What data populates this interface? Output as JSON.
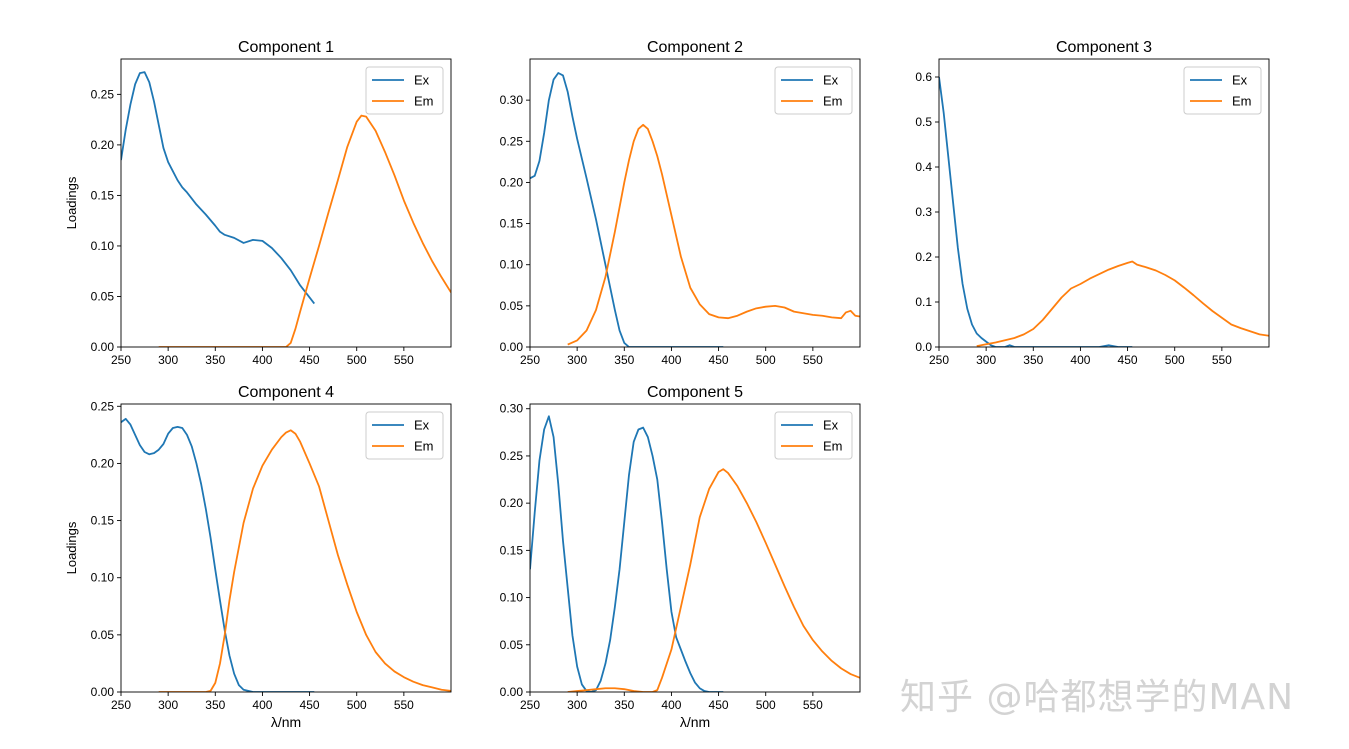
{
  "watermark": "知乎 @哈都想学的MAN",
  "colors": {
    "ex": "#1f77b4",
    "em": "#ff7f0e"
  },
  "chart_data": [
    {
      "type": "line",
      "title": "Component 1",
      "xlabel": "",
      "ylabel": "Loadings",
      "xlim": [
        250,
        600
      ],
      "ylim": [
        0,
        0.285
      ],
      "xticks": [
        250,
        300,
        350,
        400,
        450,
        500,
        550
      ],
      "yticks": [
        0.0,
        0.05,
        0.1,
        0.15,
        0.2,
        0.25
      ],
      "xtick_labels": [
        "250",
        "300",
        "350",
        "400",
        "450",
        "500",
        "550"
      ],
      "ytick_labels": [
        "0.00",
        "0.05",
        "0.10",
        "0.15",
        "0.20",
        "0.25"
      ],
      "legend": [
        "Ex",
        "Em"
      ],
      "series": [
        {
          "name": "Ex",
          "x": [
            250,
            255,
            260,
            265,
            270,
            275,
            280,
            285,
            290,
            295,
            300,
            305,
            310,
            315,
            320,
            330,
            340,
            350,
            355,
            360,
            370,
            380,
            390,
            400,
            410,
            420,
            430,
            440,
            450,
            455
          ],
          "y": [
            0.185,
            0.215,
            0.24,
            0.26,
            0.271,
            0.272,
            0.262,
            0.243,
            0.22,
            0.197,
            0.183,
            0.174,
            0.165,
            0.158,
            0.153,
            0.141,
            0.131,
            0.12,
            0.114,
            0.111,
            0.108,
            0.103,
            0.106,
            0.105,
            0.098,
            0.088,
            0.076,
            0.061,
            0.049,
            0.043
          ]
        },
        {
          "name": "Em",
          "x": [
            290,
            300,
            350,
            400,
            420,
            425,
            430,
            435,
            440,
            450,
            460,
            470,
            480,
            490,
            500,
            505,
            510,
            520,
            530,
            540,
            550,
            560,
            570,
            580,
            590,
            600
          ],
          "y": [
            0,
            0,
            0,
            0,
            0,
            0,
            0.004,
            0.018,
            0.035,
            0.068,
            0.1,
            0.133,
            0.165,
            0.198,
            0.223,
            0.229,
            0.228,
            0.214,
            0.193,
            0.17,
            0.145,
            0.123,
            0.103,
            0.085,
            0.069,
            0.054
          ]
        }
      ]
    },
    {
      "type": "line",
      "title": "Component 2",
      "xlabel": "",
      "ylabel": "",
      "xlim": [
        250,
        600
      ],
      "ylim": [
        0,
        0.35
      ],
      "xticks": [
        250,
        300,
        350,
        400,
        450,
        500,
        550
      ],
      "yticks": [
        0.0,
        0.05,
        0.1,
        0.15,
        0.2,
        0.25,
        0.3
      ],
      "xtick_labels": [
        "250",
        "300",
        "350",
        "400",
        "450",
        "500",
        "550"
      ],
      "ytick_labels": [
        "0.00",
        "0.05",
        "0.10",
        "0.15",
        "0.20",
        "0.25",
        "0.30"
      ],
      "legend": [
        "Ex",
        "Em"
      ],
      "series": [
        {
          "name": "Ex",
          "x": [
            250,
            255,
            260,
            265,
            270,
            275,
            280,
            285,
            290,
            295,
            300,
            310,
            320,
            330,
            340,
            345,
            350,
            355,
            360,
            380,
            400,
            420,
            440,
            455
          ],
          "y": [
            0.205,
            0.208,
            0.226,
            0.26,
            0.3,
            0.325,
            0.333,
            0.33,
            0.31,
            0.28,
            0.253,
            0.205,
            0.155,
            0.1,
            0.045,
            0.02,
            0.005,
            0,
            0,
            0,
            0,
            0,
            0,
            0
          ]
        },
        {
          "name": "Em",
          "x": [
            290,
            300,
            310,
            320,
            330,
            340,
            350,
            355,
            360,
            365,
            370,
            375,
            380,
            385,
            390,
            400,
            410,
            420,
            430,
            440,
            450,
            460,
            470,
            480,
            490,
            500,
            510,
            520,
            530,
            540,
            550,
            560,
            570,
            580,
            585,
            590,
            595,
            600
          ],
          "y": [
            0.003,
            0.008,
            0.02,
            0.045,
            0.085,
            0.14,
            0.2,
            0.227,
            0.25,
            0.265,
            0.27,
            0.265,
            0.25,
            0.232,
            0.21,
            0.16,
            0.11,
            0.072,
            0.052,
            0.04,
            0.036,
            0.035,
            0.038,
            0.043,
            0.047,
            0.049,
            0.05,
            0.048,
            0.043,
            0.041,
            0.039,
            0.038,
            0.036,
            0.035,
            0.042,
            0.044,
            0.038,
            0.037
          ]
        }
      ]
    },
    {
      "type": "line",
      "title": "Component 3",
      "xlabel": "",
      "ylabel": "",
      "xlim": [
        250,
        600
      ],
      "ylim": [
        0,
        0.64
      ],
      "xticks": [
        250,
        300,
        350,
        400,
        450,
        500,
        550
      ],
      "yticks": [
        0.0,
        0.1,
        0.2,
        0.3,
        0.4,
        0.5,
        0.6
      ],
      "xtick_labels": [
        "250",
        "300",
        "350",
        "400",
        "450",
        "500",
        "550"
      ],
      "ytick_labels": [
        "0.0",
        "0.1",
        "0.2",
        "0.3",
        "0.4",
        "0.5",
        "0.6"
      ],
      "legend": [
        "Ex",
        "Em"
      ],
      "series": [
        {
          "name": "Ex",
          "x": [
            250,
            255,
            260,
            265,
            270,
            275,
            280,
            285,
            290,
            295,
            300,
            305,
            310,
            320,
            325,
            330,
            340,
            360,
            380,
            400,
            420,
            430,
            435,
            440,
            455
          ],
          "y": [
            0.6,
            0.52,
            0.42,
            0.32,
            0.22,
            0.14,
            0.085,
            0.05,
            0.03,
            0.02,
            0.012,
            0.004,
            0,
            0,
            0.004,
            0,
            0,
            0,
            0,
            0,
            0,
            0.004,
            0.002,
            0,
            0
          ]
        },
        {
          "name": "Em",
          "x": [
            290,
            300,
            310,
            320,
            330,
            340,
            350,
            360,
            370,
            380,
            390,
            400,
            410,
            420,
            430,
            440,
            450,
            455,
            460,
            470,
            480,
            490,
            500,
            510,
            520,
            530,
            540,
            550,
            560,
            570,
            580,
            590,
            600
          ],
          "y": [
            0.002,
            0.006,
            0.01,
            0.015,
            0.02,
            0.028,
            0.04,
            0.06,
            0.085,
            0.11,
            0.13,
            0.14,
            0.152,
            0.162,
            0.172,
            0.18,
            0.187,
            0.19,
            0.183,
            0.177,
            0.17,
            0.16,
            0.148,
            0.132,
            0.115,
            0.097,
            0.08,
            0.065,
            0.05,
            0.042,
            0.035,
            0.028,
            0.025
          ]
        }
      ]
    },
    {
      "type": "line",
      "title": "Component 4",
      "xlabel": "λ/nm",
      "ylabel": "Loadings",
      "xlim": [
        250,
        600
      ],
      "ylim": [
        0,
        0.252
      ],
      "xticks": [
        250,
        300,
        350,
        400,
        450,
        500,
        550
      ],
      "yticks": [
        0.0,
        0.05,
        0.1,
        0.15,
        0.2,
        0.25
      ],
      "xtick_labels": [
        "250",
        "300",
        "350",
        "400",
        "450",
        "500",
        "550"
      ],
      "ytick_labels": [
        "0.00",
        "0.05",
        "0.10",
        "0.15",
        "0.20",
        "0.25"
      ],
      "legend": [
        "Ex",
        "Em"
      ],
      "series": [
        {
          "name": "Ex",
          "x": [
            250,
            255,
            260,
            265,
            270,
            275,
            280,
            285,
            290,
            295,
            300,
            305,
            310,
            315,
            320,
            325,
            330,
            335,
            340,
            345,
            350,
            355,
            360,
            365,
            370,
            375,
            380,
            385,
            390,
            400,
            420,
            455
          ],
          "y": [
            0.236,
            0.239,
            0.234,
            0.225,
            0.216,
            0.21,
            0.208,
            0.209,
            0.212,
            0.217,
            0.226,
            0.231,
            0.232,
            0.231,
            0.225,
            0.215,
            0.2,
            0.182,
            0.16,
            0.135,
            0.107,
            0.08,
            0.054,
            0.032,
            0.016,
            0.006,
            0.002,
            0.001,
            0,
            0,
            0,
            0
          ]
        },
        {
          "name": "Em",
          "x": [
            290,
            300,
            340,
            345,
            350,
            355,
            360,
            365,
            370,
            380,
            390,
            400,
            410,
            420,
            425,
            430,
            435,
            440,
            450,
            460,
            470,
            480,
            490,
            500,
            510,
            520,
            530,
            540,
            550,
            560,
            570,
            580,
            590,
            600
          ],
          "y": [
            0,
            0,
            0,
            0.001,
            0.008,
            0.025,
            0.05,
            0.08,
            0.105,
            0.148,
            0.178,
            0.198,
            0.212,
            0.223,
            0.227,
            0.229,
            0.226,
            0.219,
            0.2,
            0.18,
            0.15,
            0.12,
            0.094,
            0.07,
            0.05,
            0.035,
            0.025,
            0.018,
            0.013,
            0.009,
            0.006,
            0.004,
            0.002,
            0.001
          ]
        }
      ]
    },
    {
      "type": "line",
      "title": "Component 5",
      "xlabel": "λ/nm",
      "ylabel": "",
      "xlim": [
        250,
        600
      ],
      "ylim": [
        0,
        0.305
      ],
      "xticks": [
        250,
        300,
        350,
        400,
        450,
        500,
        550
      ],
      "yticks": [
        0.0,
        0.05,
        0.1,
        0.15,
        0.2,
        0.25,
        0.3
      ],
      "xtick_labels": [
        "250",
        "300",
        "350",
        "400",
        "450",
        "500",
        "550"
      ],
      "ytick_labels": [
        "0.00",
        "0.05",
        "0.10",
        "0.15",
        "0.20",
        "0.25",
        "0.30"
      ],
      "legend": [
        "Ex",
        "Em"
      ],
      "series": [
        {
          "name": "Ex",
          "x": [
            250,
            255,
            260,
            265,
            270,
            275,
            280,
            285,
            290,
            295,
            300,
            305,
            310,
            315,
            320,
            325,
            330,
            335,
            340,
            345,
            350,
            355,
            360,
            365,
            370,
            375,
            380,
            385,
            390,
            395,
            400,
            405,
            410,
            415,
            420,
            425,
            430,
            435,
            440,
            445,
            450,
            455
          ],
          "y": [
            0.13,
            0.19,
            0.245,
            0.278,
            0.292,
            0.27,
            0.22,
            0.16,
            0.11,
            0.06,
            0.027,
            0.008,
            0.001,
            0,
            0.002,
            0.012,
            0.03,
            0.055,
            0.09,
            0.13,
            0.18,
            0.23,
            0.265,
            0.278,
            0.28,
            0.27,
            0.25,
            0.225,
            0.18,
            0.13,
            0.085,
            0.058,
            0.045,
            0.032,
            0.02,
            0.01,
            0.004,
            0.001,
            0,
            0,
            0,
            0
          ]
        },
        {
          "name": "Em",
          "x": [
            290,
            300,
            310,
            320,
            330,
            340,
            350,
            360,
            370,
            380,
            385,
            390,
            400,
            410,
            420,
            430,
            440,
            450,
            455,
            460,
            465,
            470,
            480,
            490,
            500,
            510,
            520,
            530,
            540,
            550,
            560,
            570,
            580,
            590,
            600
          ],
          "y": [
            0,
            0.001,
            0.002,
            0.003,
            0.004,
            0.004,
            0.003,
            0.001,
            0,
            0,
            0.002,
            0.015,
            0.045,
            0.09,
            0.135,
            0.185,
            0.215,
            0.233,
            0.236,
            0.232,
            0.225,
            0.218,
            0.2,
            0.18,
            0.158,
            0.135,
            0.112,
            0.09,
            0.07,
            0.055,
            0.043,
            0.033,
            0.025,
            0.019,
            0.015
          ]
        }
      ]
    }
  ]
}
